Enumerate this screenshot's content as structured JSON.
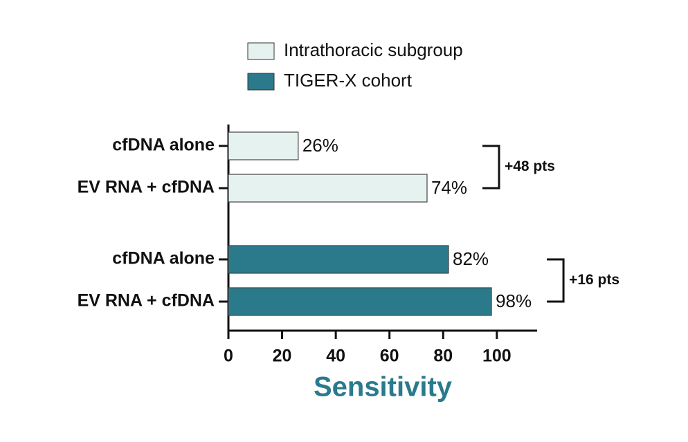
{
  "chart_data": {
    "type": "hbar",
    "categories": [
      "cfDNA alone",
      "EV RNA + cfDNA"
    ],
    "series": [
      {
        "name": "Intrathoracic subgroup",
        "color": "#e6f2f0",
        "values": [
          26,
          74
        ],
        "value_labels": [
          "26%",
          "74%"
        ],
        "annotation": "+48 pts"
      },
      {
        "name": "TIGER-X cohort",
        "color": "#2a7a8c",
        "values": [
          82,
          98
        ],
        "value_labels": [
          "82%",
          "98%"
        ],
        "annotation": "+16 pts"
      }
    ],
    "x_label": "Sensitivity",
    "x_label_color": "#2a7a8c",
    "xlim": [
      0,
      115
    ],
    "xticks": [
      0,
      20,
      40,
      60,
      80,
      100
    ]
  }
}
